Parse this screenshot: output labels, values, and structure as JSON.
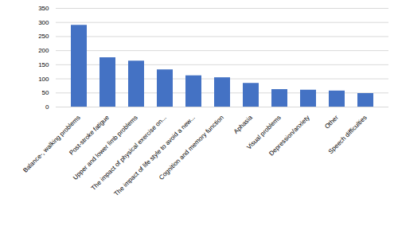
{
  "chart_data": {
    "type": "bar",
    "categories": [
      "Balance-, walking problems",
      "Post-stroke fatigue",
      "Upper and lower limb problems",
      "The impact of physical exercise on...",
      "The impact of life style to avoid a new...",
      "Cognition and memory function",
      "Aphasia",
      "Visual problems",
      "Depression/anxiety",
      "Other",
      "Speech difficulties"
    ],
    "values": [
      290,
      175,
      163,
      132,
      111,
      104,
      84,
      62,
      60,
      57,
      48
    ],
    "color": "#4472C4",
    "ylim": [
      0,
      350
    ],
    "yticks": [
      0,
      50,
      100,
      150,
      200,
      250,
      300,
      350
    ],
    "grid": true
  }
}
